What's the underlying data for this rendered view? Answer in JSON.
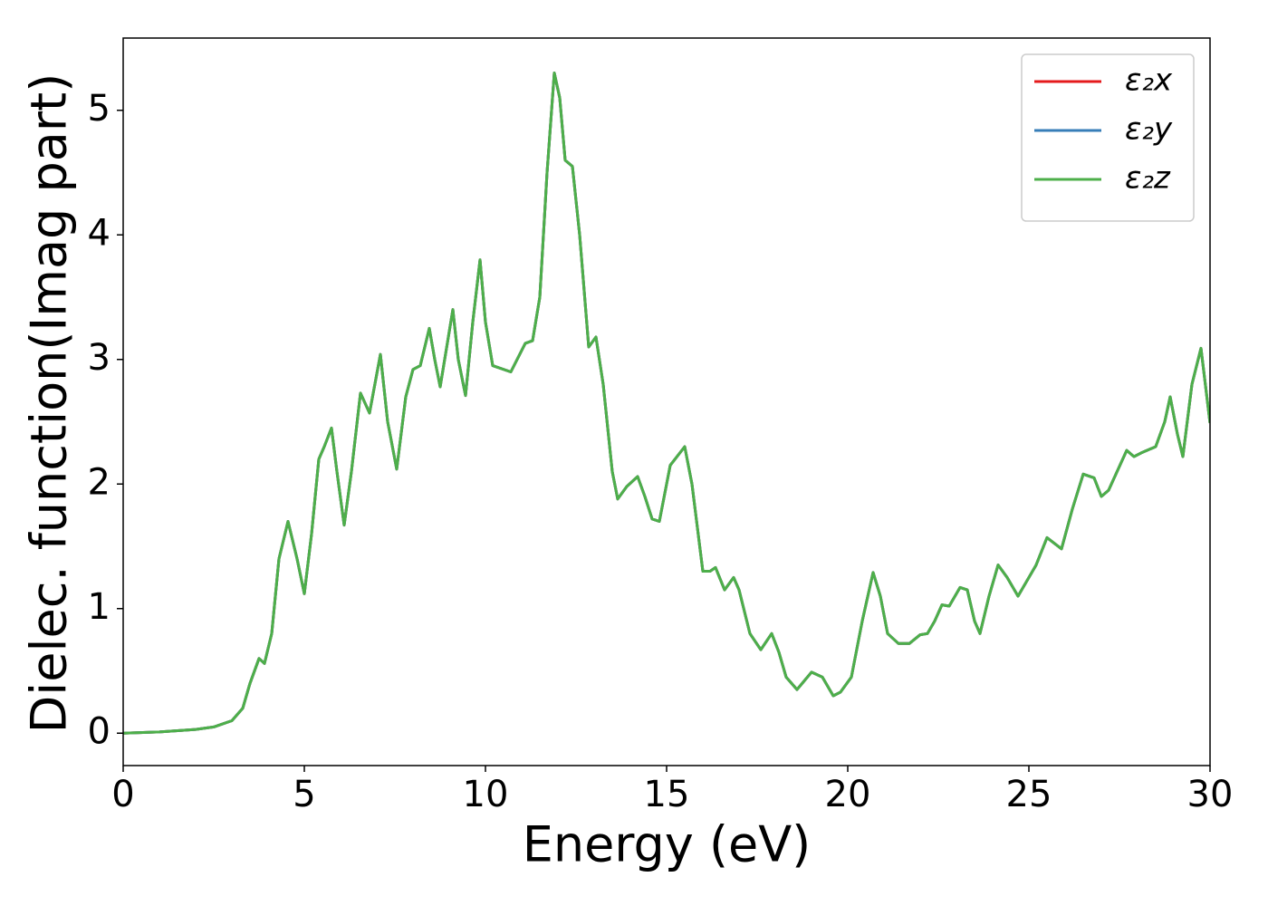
{
  "chart_data": {
    "type": "line",
    "xlabel": "Energy (eV)",
    "ylabel": "Dielec. function(Imag part)",
    "xlim": [
      0,
      30
    ],
    "ylim": [
      -0.26,
      5.58
    ],
    "xticks": [
      0,
      5,
      10,
      15,
      20,
      25,
      30
    ],
    "yticks": [
      0,
      1,
      2,
      3,
      4,
      5
    ],
    "grid": false,
    "legend": "upper right",
    "x": [
      0,
      1,
      2,
      2.5,
      3,
      3.3,
      3.5,
      3.75,
      3.9,
      4.1,
      4.3,
      4.55,
      4.8,
      5.0,
      5.2,
      5.4,
      5.55,
      5.75,
      5.9,
      6.1,
      6.3,
      6.55,
      6.8,
      7.1,
      7.3,
      7.55,
      7.8,
      8.0,
      8.2,
      8.45,
      8.6,
      8.75,
      9.1,
      9.25,
      9.45,
      9.65,
      9.85,
      10.0,
      10.2,
      10.7,
      11.1,
      11.3,
      11.5,
      11.7,
      11.9,
      12.05,
      12.2,
      12.4,
      12.6,
      12.85,
      13.05,
      13.25,
      13.5,
      13.65,
      13.9,
      14.2,
      14.4,
      14.6,
      14.8,
      15.1,
      15.5,
      15.7,
      16.0,
      16.2,
      16.35,
      16.6,
      16.85,
      17.0,
      17.3,
      17.6,
      17.9,
      18.1,
      18.3,
      18.6,
      19.0,
      19.3,
      19.6,
      19.8,
      20.1,
      20.4,
      20.7,
      20.9,
      21.1,
      21.4,
      21.7,
      22.0,
      22.2,
      22.4,
      22.6,
      22.8,
      23.1,
      23.3,
      23.5,
      23.65,
      23.9,
      24.15,
      24.4,
      24.7,
      25.0,
      25.2,
      25.5,
      25.9,
      26.2,
      26.5,
      26.8,
      27.0,
      27.2,
      27.7,
      27.9,
      28.1,
      28.5,
      28.75,
      28.9,
      29.1,
      29.25,
      29.5,
      29.75,
      30.0
    ],
    "series": [
      {
        "name": "ε₂x",
        "color": "#e41a1c",
        "values": [
          0,
          0.01,
          0.03,
          0.05,
          0.1,
          0.2,
          0.4,
          0.6,
          0.56,
          0.8,
          1.4,
          1.7,
          1.4,
          1.12,
          1.6,
          2.2,
          2.3,
          2.45,
          2.1,
          1.67,
          2.1,
          2.73,
          2.57,
          3.04,
          2.5,
          2.12,
          2.7,
          2.92,
          2.95,
          3.25,
          3.0,
          2.78,
          3.4,
          3.0,
          2.71,
          3.3,
          3.8,
          3.3,
          2.95,
          2.9,
          3.13,
          3.15,
          3.5,
          4.5,
          5.3,
          5.1,
          4.6,
          4.55,
          4.0,
          3.1,
          3.18,
          2.8,
          2.1,
          1.88,
          1.98,
          2.06,
          1.9,
          1.72,
          1.7,
          2.15,
          2.3,
          2.0,
          1.3,
          1.3,
          1.33,
          1.15,
          1.25,
          1.15,
          0.8,
          0.67,
          0.8,
          0.65,
          0.45,
          0.35,
          0.49,
          0.45,
          0.3,
          0.33,
          0.45,
          0.9,
          1.29,
          1.1,
          0.8,
          0.72,
          0.72,
          0.79,
          0.8,
          0.9,
          1.03,
          1.02,
          1.17,
          1.15,
          0.9,
          0.8,
          1.1,
          1.35,
          1.25,
          1.1,
          1.25,
          1.35,
          1.57,
          1.48,
          1.8,
          2.08,
          2.05,
          1.9,
          1.95,
          2.27,
          2.22,
          2.25,
          2.3,
          2.5,
          2.7,
          2.4,
          2.22,
          2.8,
          3.09,
          2.49
        ]
      },
      {
        "name": "ε₂y",
        "color": "#377eb8",
        "values": [
          0,
          0.01,
          0.03,
          0.05,
          0.1,
          0.2,
          0.4,
          0.6,
          0.56,
          0.8,
          1.4,
          1.7,
          1.4,
          1.12,
          1.6,
          2.2,
          2.3,
          2.45,
          2.1,
          1.67,
          2.1,
          2.73,
          2.57,
          3.04,
          2.5,
          2.12,
          2.7,
          2.92,
          2.95,
          3.25,
          3.0,
          2.78,
          3.4,
          3.0,
          2.71,
          3.3,
          3.8,
          3.3,
          2.95,
          2.9,
          3.13,
          3.15,
          3.5,
          4.5,
          5.3,
          5.1,
          4.6,
          4.55,
          4.0,
          3.1,
          3.18,
          2.8,
          2.1,
          1.88,
          1.98,
          2.06,
          1.9,
          1.72,
          1.7,
          2.15,
          2.3,
          2.0,
          1.3,
          1.3,
          1.33,
          1.15,
          1.25,
          1.15,
          0.8,
          0.67,
          0.8,
          0.65,
          0.45,
          0.35,
          0.49,
          0.45,
          0.3,
          0.33,
          0.45,
          0.9,
          1.29,
          1.1,
          0.8,
          0.72,
          0.72,
          0.79,
          0.8,
          0.9,
          1.03,
          1.02,
          1.17,
          1.15,
          0.9,
          0.8,
          1.1,
          1.35,
          1.25,
          1.1,
          1.25,
          1.35,
          1.57,
          1.48,
          1.8,
          2.08,
          2.05,
          1.9,
          1.95,
          2.27,
          2.22,
          2.25,
          2.3,
          2.5,
          2.7,
          2.4,
          2.22,
          2.8,
          3.09,
          2.49
        ]
      },
      {
        "name": "ε₂z",
        "color": "#4daf4a",
        "values": [
          0,
          0.01,
          0.03,
          0.05,
          0.1,
          0.2,
          0.4,
          0.6,
          0.56,
          0.8,
          1.4,
          1.7,
          1.4,
          1.12,
          1.6,
          2.2,
          2.3,
          2.45,
          2.1,
          1.67,
          2.1,
          2.73,
          2.57,
          3.04,
          2.5,
          2.12,
          2.7,
          2.92,
          2.95,
          3.25,
          3.0,
          2.78,
          3.4,
          3.0,
          2.71,
          3.3,
          3.8,
          3.3,
          2.95,
          2.9,
          3.13,
          3.15,
          3.5,
          4.5,
          5.3,
          5.1,
          4.6,
          4.55,
          4.0,
          3.1,
          3.18,
          2.8,
          2.1,
          1.88,
          1.98,
          2.06,
          1.9,
          1.72,
          1.7,
          2.15,
          2.3,
          2.0,
          1.3,
          1.3,
          1.33,
          1.15,
          1.25,
          1.15,
          0.8,
          0.67,
          0.8,
          0.65,
          0.45,
          0.35,
          0.49,
          0.45,
          0.3,
          0.33,
          0.45,
          0.9,
          1.29,
          1.1,
          0.8,
          0.72,
          0.72,
          0.79,
          0.8,
          0.9,
          1.03,
          1.02,
          1.17,
          1.15,
          0.9,
          0.8,
          1.1,
          1.35,
          1.25,
          1.1,
          1.25,
          1.35,
          1.57,
          1.48,
          1.8,
          2.08,
          2.05,
          1.9,
          1.95,
          2.27,
          2.22,
          2.25,
          2.3,
          2.5,
          2.7,
          2.4,
          2.22,
          2.8,
          3.09,
          2.49
        ]
      }
    ]
  }
}
